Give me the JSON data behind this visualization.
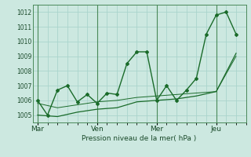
{
  "xlabel": "Pression niveau de la mer( hPa )",
  "background_color": "#cce8e0",
  "grid_color": "#aad4cc",
  "line_color": "#1a6b2a",
  "ylim": [
    1004.5,
    1012.5
  ],
  "yticks": [
    1005,
    1006,
    1007,
    1008,
    1009,
    1010,
    1011,
    1012
  ],
  "ytick_labels": [
    "1005",
    "1006",
    "1007",
    "1008",
    "1009",
    "1010",
    "1011",
    "1012"
  ],
  "xtick_labels": [
    "Mar",
    "Ven",
    "Mer",
    "Jeu"
  ],
  "xtick_positions": [
    0,
    24,
    48,
    72
  ],
  "xlim": [
    -2,
    84
  ],
  "series1_x": [
    0,
    4,
    8,
    12,
    16,
    20,
    24,
    28,
    32,
    36,
    40,
    44,
    48,
    52,
    56,
    60,
    64,
    68,
    72,
    76,
    80
  ],
  "series1_y": [
    1006.0,
    1005.0,
    1006.7,
    1007.0,
    1005.9,
    1006.4,
    1005.8,
    1006.5,
    1006.4,
    1008.5,
    1009.3,
    1009.3,
    1006.0,
    1007.0,
    1006.0,
    1006.7,
    1007.5,
    1010.5,
    1011.8,
    1012.0,
    1010.5
  ],
  "series2_x": [
    0,
    8,
    16,
    24,
    32,
    40,
    48,
    56,
    64,
    72,
    80
  ],
  "series2_y": [
    1005.0,
    1004.9,
    1005.2,
    1005.4,
    1005.5,
    1005.9,
    1006.0,
    1006.1,
    1006.3,
    1006.6,
    1009.2
  ],
  "series3_x": [
    0,
    8,
    16,
    24,
    32,
    40,
    48,
    56,
    64,
    72,
    80
  ],
  "series3_y": [
    1005.8,
    1005.5,
    1005.7,
    1005.9,
    1006.0,
    1006.2,
    1006.3,
    1006.4,
    1006.5,
    1006.6,
    1009.0
  ],
  "vline_positions": [
    0,
    24,
    48,
    72
  ]
}
